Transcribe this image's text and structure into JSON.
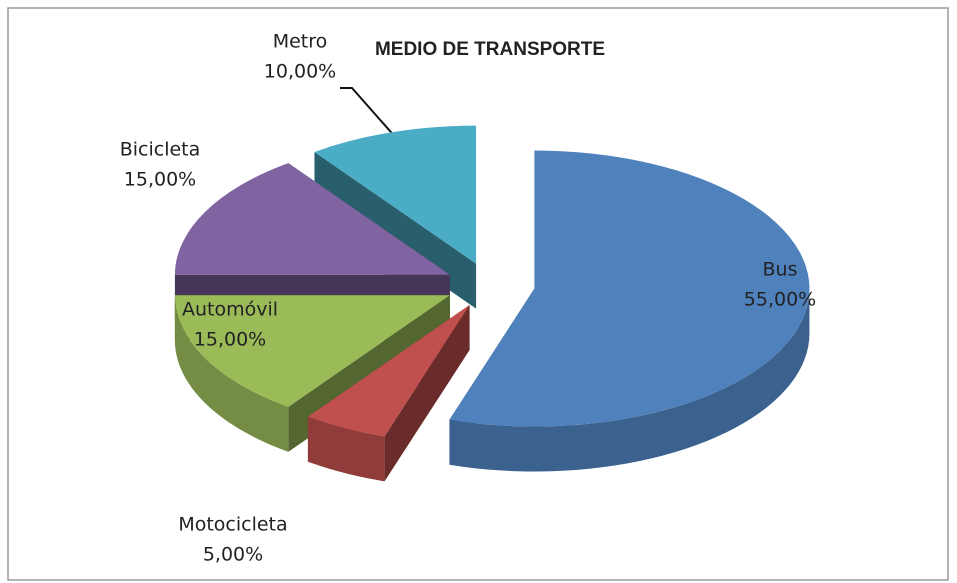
{
  "chart_data": {
    "type": "pie",
    "title": "MEDIO DE TRANSPORTE",
    "categories": [
      "Bus",
      "Motocicleta",
      "Automóvil",
      "Bicicleta",
      "Metro"
    ],
    "values": [
      55,
      5,
      15,
      15,
      10
    ],
    "value_labels": [
      "55,00%",
      "5,00%",
      "15,00%",
      "15,00%",
      "10,00%"
    ],
    "colors": [
      "#4f81bd",
      "#c0504d",
      "#9bbb59",
      "#8064a2",
      "#4bacc6"
    ],
    "exploded": true,
    "three_d": true
  }
}
